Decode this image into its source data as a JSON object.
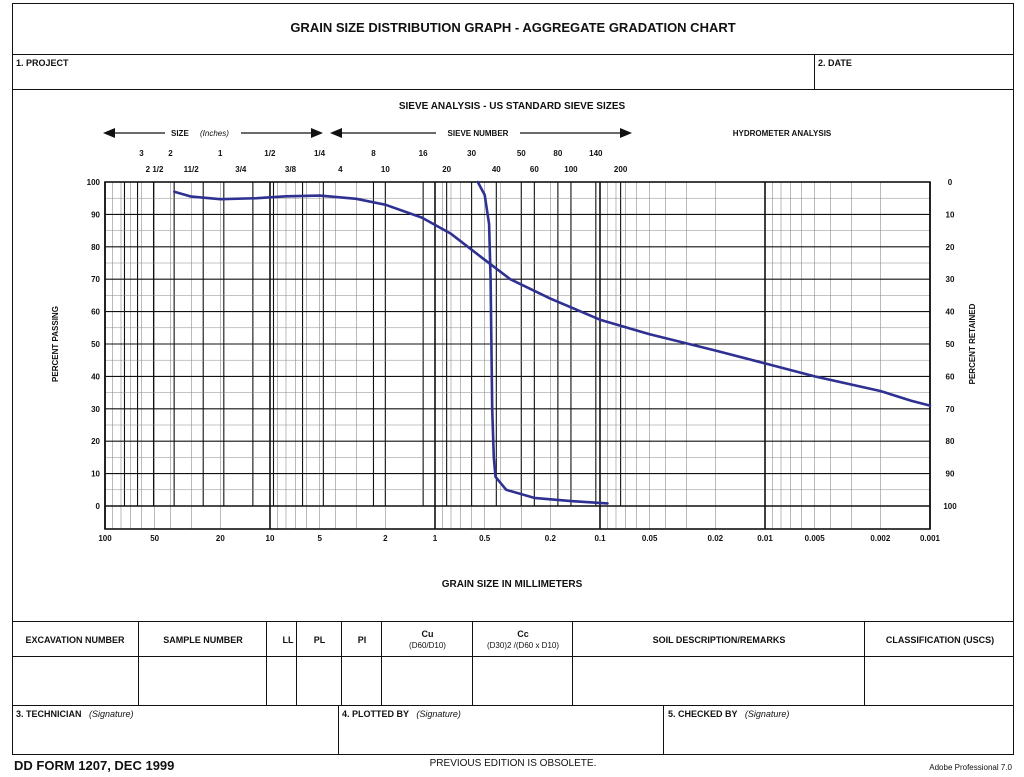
{
  "form": {
    "title": "GRAIN SIZE DISTRIBUTION GRAPH - AGGREGATE GRADATION CHART",
    "project_label": "1. PROJECT",
    "date_label": "2. DATE",
    "sieve_title": "SIEVE ANALYSIS - US STANDARD SIEVE SIZES",
    "size_label": "SIZE",
    "size_units": "(Inches)",
    "sieve_number_label": "SIEVE NUMBER",
    "hydrometer_label": "HYDROMETER ANALYSIS",
    "table_headers": {
      "excavation": "EXCAVATION NUMBER",
      "sample": "SAMPLE NUMBER",
      "ll": "LL",
      "pl": "PL",
      "pi": "PI",
      "cu": "Cu",
      "cu_formula": "(D60/D10)",
      "cc": "Cc",
      "cc_formula": "(D30)2 /(D60 x D10)",
      "remarks": "SOIL DESCRIPTION/REMARKS",
      "classification": "CLASSIFICATION (USCS)"
    },
    "technician_label": "3. TECHNICIAN",
    "plotted_label": "4. PLOTTED BY",
    "checked_label": "5. CHECKED BY",
    "signature": "(Signature)",
    "footer_form": "DD FORM 1207, DEC 1999",
    "footer_obsolete": "PREVIOUS EDITION IS OBSOLETE.",
    "footer_software": "Adobe Professional 7.0"
  },
  "chart_data": {
    "type": "line",
    "title": "SIEVE ANALYSIS - US STANDARD SIEVE SIZES",
    "xlabel": "GRAIN SIZE IN MILLIMETERS",
    "ylabel": "PERCENT PASSING",
    "y2label": "PERCENT RETAINED",
    "x_scale": "log",
    "x_reversed": true,
    "xlim": [
      100,
      0.001
    ],
    "ylim": [
      0,
      100
    ],
    "grid": true,
    "x_ticks": [
      {
        "value": 100,
        "label": "100"
      },
      {
        "value": 50,
        "label": "50"
      },
      {
        "value": 20,
        "label": "20"
      },
      {
        "value": 10,
        "label": "10"
      },
      {
        "value": 5,
        "label": "5"
      },
      {
        "value": 2,
        "label": "2"
      },
      {
        "value": 1,
        "label": "1"
      },
      {
        "value": 0.5,
        "label": "0.5"
      },
      {
        "value": 0.2,
        "label": "0.2"
      },
      {
        "value": 0.1,
        "label": "0.1"
      },
      {
        "value": 0.05,
        "label": "0.05"
      },
      {
        "value": 0.02,
        "label": "0.02"
      },
      {
        "value": 0.01,
        "label": "0.01"
      },
      {
        "value": 0.005,
        "label": "0.005"
      },
      {
        "value": 0.002,
        "label": "0.002"
      },
      {
        "value": 0.001,
        "label": "0.001"
      }
    ],
    "y_ticks": [
      0,
      10,
      20,
      30,
      40,
      50,
      60,
      70,
      80,
      90,
      100
    ],
    "y2_ticks": [
      100,
      90,
      80,
      70,
      60,
      50,
      40,
      30,
      20,
      10,
      0
    ],
    "size_inches_top": [
      {
        "value": 76.2,
        "label": "3"
      },
      {
        "value": 50.8,
        "label": "2"
      },
      {
        "value": 25.4,
        "label": "1"
      },
      {
        "value": 12.7,
        "label": "1/2"
      },
      {
        "value": 6.35,
        "label": "1/4"
      }
    ],
    "size_inches_bottom": [
      {
        "value": 63.5,
        "label": "2 1/2"
      },
      {
        "value": 38.1,
        "label": "11/2"
      },
      {
        "value": 19.05,
        "label": "3/4"
      },
      {
        "value": 9.525,
        "label": "3/8"
      },
      {
        "value": 4.75,
        "label": "4"
      }
    ],
    "sieve_numbers_top": [
      {
        "value": 2.36,
        "label": "8"
      },
      {
        "value": 1.18,
        "label": "16"
      },
      {
        "value": 0.6,
        "label": "30"
      },
      {
        "value": 0.3,
        "label": "50"
      },
      {
        "value": 0.18,
        "label": "80"
      },
      {
        "value": 0.106,
        "label": "140"
      }
    ],
    "sieve_numbers_bottom": [
      {
        "value": 2.0,
        "label": "10"
      },
      {
        "value": 0.85,
        "label": "20"
      },
      {
        "value": 0.425,
        "label": "40"
      },
      {
        "value": 0.25,
        "label": "60"
      },
      {
        "value": 0.15,
        "label": "100"
      },
      {
        "value": 0.075,
        "label": "200"
      }
    ],
    "series": [
      {
        "color": "#2e3192",
        "points": [
          [
            38,
            97
          ],
          [
            30,
            95.5
          ],
          [
            20,
            94.7
          ],
          [
            12,
            95
          ],
          [
            8,
            95.6
          ],
          [
            5,
            95.8
          ],
          [
            3,
            94.8
          ],
          [
            2,
            93
          ],
          [
            1.2,
            89
          ],
          [
            0.8,
            84
          ],
          [
            0.5,
            76
          ],
          [
            0.35,
            70
          ],
          [
            0.2,
            64
          ],
          [
            0.1,
            57.5
          ],
          [
            0.05,
            53
          ],
          [
            0.02,
            48
          ],
          [
            0.01,
            44
          ],
          [
            0.005,
            40
          ],
          [
            0.002,
            35.5
          ],
          [
            0.0013,
            32.5
          ],
          [
            0.001,
            31
          ]
        ]
      },
      {
        "color": "#2e3192",
        "points": [
          [
            0.55,
            100
          ],
          [
            0.5,
            96
          ],
          [
            0.47,
            87
          ],
          [
            0.46,
            70
          ],
          [
            0.455,
            50
          ],
          [
            0.45,
            30
          ],
          [
            0.44,
            15
          ],
          [
            0.43,
            9
          ],
          [
            0.37,
            5
          ],
          [
            0.25,
            2.5
          ],
          [
            0.15,
            1.5
          ],
          [
            0.09,
            0.8
          ]
        ]
      }
    ]
  }
}
